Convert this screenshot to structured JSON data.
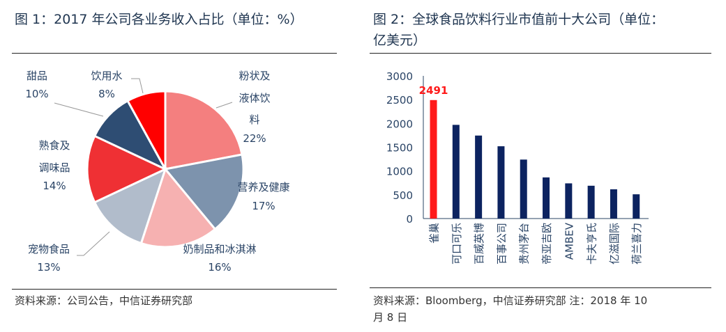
{
  "figure1": {
    "title": "图 1：2017 年公司各业务收入占比（单位：%）",
    "source": "资料来源：公司公告，中信证券研究部"
  },
  "figure2": {
    "title_line1": "图 2：全球食品饮料行业市值前十大公司（单位：",
    "title_line2": "亿美元）",
    "source_line1": "资料来源：Bloomberg，中信证券研究部 注：2018 年 10",
    "source_line2": "月 8 日"
  },
  "chart_data": [
    {
      "type": "pie",
      "title": "图 1：2017 年公司各业务收入占比（单位：%）",
      "start": "12 o'clock, clockwise",
      "slices": [
        {
          "label_lines": [
            "粉状及",
            "液体饮",
            "料"
          ],
          "label": "粉状及液体饮料",
          "value": 22,
          "value_label": "22%",
          "color": "#f47f7f"
        },
        {
          "label_lines": [
            "营养及健康"
          ],
          "label": "营养及健康",
          "value": 17,
          "value_label": "17%",
          "color": "#7d93ad"
        },
        {
          "label_lines": [
            "奶制品和冰淇淋"
          ],
          "label": "奶制品和冰淇淋",
          "value": 16,
          "value_label": "16%",
          "color": "#f6b1b1"
        },
        {
          "label_lines": [
            "宠物食品"
          ],
          "label": "宠物食品",
          "value": 13,
          "value_label": "13%",
          "color": "#b1bccb"
        },
        {
          "label_lines": [
            "熟食及",
            "调味品"
          ],
          "label": "熟食及调味品",
          "value": 14,
          "value_label": "14%",
          "color": "#ef3034"
        },
        {
          "label_lines": [
            "甜品"
          ],
          "label": "甜品",
          "value": 10,
          "value_label": "10%",
          "color": "#2e4d73"
        },
        {
          "label_lines": [
            "饮用水"
          ],
          "label": "饮用水",
          "value": 8,
          "value_label": "8%",
          "color": "#ff0000"
        }
      ]
    },
    {
      "type": "bar",
      "title": "图 2：全球食品饮料行业市值前十大公司（单位：亿美元）",
      "categories": [
        "雀巢",
        "可口可乐",
        "百威英博",
        "百事公司",
        "贵州茅台",
        "帝亚吉欧",
        "AMBEV",
        "卡夫亨氏",
        "亿滋国际",
        "荷兰喜力"
      ],
      "values": [
        2491,
        1970,
        1745,
        1520,
        1240,
        865,
        740,
        690,
        615,
        510
      ],
      "highlight_index": 0,
      "highlight_color": "#ff1a1a",
      "bar_color": "#0c2360",
      "data_labels": [
        {
          "index": 0,
          "text": "2491"
        }
      ],
      "ylim": [
        0,
        3000
      ],
      "yticks": [
        "0",
        "500",
        "1000",
        "1500",
        "2000",
        "2500",
        "3000"
      ],
      "grid": false,
      "xlabel": "",
      "ylabel": ""
    }
  ]
}
